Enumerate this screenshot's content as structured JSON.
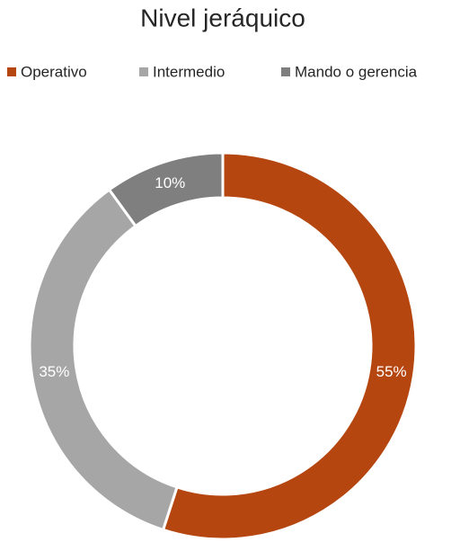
{
  "chart_data": {
    "type": "donut",
    "title": "Nivel jeráquico",
    "categories": [
      "Operativo",
      "Intermedio",
      "Mando o gerencia"
    ],
    "values": [
      55,
      35,
      10
    ],
    "value_labels": [
      "55%",
      "35%",
      "10%"
    ],
    "colors": [
      "#b5460f",
      "#a6a6a6",
      "#7f7f7f"
    ],
    "legend": "top"
  }
}
